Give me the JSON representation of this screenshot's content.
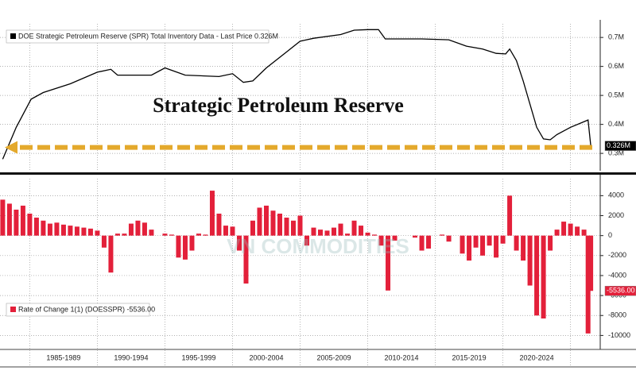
{
  "chart_data": [
    {
      "type": "line",
      "annotation": "Strategic Petroleum Reserve",
      "series": [
        {
          "name": "DOE Strategic Petroleum Reserve (SPR) Total Inventory Data - Last Price 0.326M",
          "color": "#000000",
          "last_label": "0.326M",
          "x": [
            1983.0,
            1984.0,
            1985.1,
            1986.0,
            1988.0,
            1990.0,
            1991.0,
            1991.5,
            1994.0,
            1995.0,
            1996.5,
            1999.0,
            2000.0,
            2000.8,
            2001.5,
            2002.5,
            2004.0,
            2005.0,
            2006.0,
            2008.0,
            2009.0,
            2010.0,
            2010.8,
            2011.3,
            2014.0,
            2016.0,
            2017.3,
            2018.5,
            2019.5,
            2020.2,
            2020.5,
            2021.0,
            2021.5,
            2022.0,
            2022.5,
            2023.0,
            2023.5,
            2024.0,
            2025.0,
            2026.3,
            2026.5
          ],
          "values": [
            0.28,
            0.39,
            0.487,
            0.51,
            0.54,
            0.58,
            0.59,
            0.57,
            0.57,
            0.595,
            0.57,
            0.565,
            0.575,
            0.545,
            0.55,
            0.595,
            0.65,
            0.687,
            0.697,
            0.71,
            0.725,
            0.727,
            0.727,
            0.695,
            0.695,
            0.692,
            0.67,
            0.66,
            0.645,
            0.643,
            0.66,
            0.62,
            0.55,
            0.47,
            0.39,
            0.35,
            0.347,
            0.365,
            0.39,
            0.415,
            0.326
          ]
        }
      ],
      "xlim": [
        1982.8,
        2027.2
      ],
      "ylim": [
        0.24,
        0.747
      ],
      "yticks": [
        {
          "value": 0.3,
          "label": "0.3M"
        },
        {
          "value": 0.4,
          "label": "0.4M"
        },
        {
          "value": 0.5,
          "label": "0.5M"
        },
        {
          "value": 0.6,
          "label": "0.6M"
        },
        {
          "value": 0.7,
          "label": "0.7M"
        }
      ],
      "xgrid": [
        1985,
        1990,
        1995,
        2000,
        2005,
        2010,
        2015,
        2020,
        2025
      ],
      "grid": true
    },
    {
      "type": "bar",
      "watermark": "VN COMMODITIES",
      "series": [
        {
          "name": "Rate of Change 1(1) (DOESSPR) -5536.00",
          "color": "#e3203a",
          "last_label": "-5536.00",
          "x": [
            1983.0,
            1983.5,
            1984.0,
            1984.5,
            1985.0,
            1985.5,
            1986.0,
            1986.5,
            1987.0,
            1987.5,
            1988.0,
            1988.5,
            1989.0,
            1989.5,
            1990.0,
            1990.5,
            1991.0,
            1991.5,
            1992.0,
            1992.5,
            1993.0,
            1993.5,
            1994.0,
            1995.0,
            1995.5,
            1996.0,
            1996.5,
            1997.0,
            1997.5,
            1998.0,
            1998.5,
            1999.0,
            1999.5,
            2000.0,
            2000.5,
            2001.0,
            2001.5,
            2002.0,
            2002.5,
            2003.0,
            2003.5,
            2004.0,
            2004.5,
            2005.0,
            2005.5,
            2006.0,
            2006.5,
            2007.0,
            2007.5,
            2008.0,
            2008.5,
            2009.0,
            2009.5,
            2010.0,
            2010.5,
            2011.0,
            2011.5,
            2012.0,
            2013.5,
            2014.0,
            2014.5,
            2015.5,
            2016.0,
            2017.0,
            2017.5,
            2018.0,
            2018.5,
            2019.0,
            2019.5,
            2020.0,
            2020.5,
            2021.0,
            2021.5,
            2022.0,
            2022.5,
            2023.0,
            2023.5,
            2024.0,
            2024.5,
            2025.0,
            2025.5,
            2026.0,
            2026.3,
            2026.5
          ],
          "values": [
            3600,
            3200,
            2600,
            3000,
            2200,
            1800,
            1500,
            1200,
            1300,
            1100,
            1000,
            900,
            800,
            700,
            500,
            -1200,
            -3700,
            200,
            200,
            1200,
            1500,
            1300,
            600,
            200,
            100,
            -2200,
            -2400,
            -1500,
            200,
            100,
            4500,
            2200,
            1000,
            900,
            -1500,
            -4800,
            1500,
            2800,
            3000,
            2500,
            2200,
            1800,
            1500,
            2000,
            -1000,
            800,
            600,
            500,
            800,
            1200,
            200,
            1500,
            1000,
            300,
            100,
            -1000,
            -5500,
            -500,
            -200,
            -1500,
            -1300,
            100,
            -600,
            -1800,
            -2500,
            -1200,
            -2000,
            -1000,
            -2200,
            -800,
            4000,
            -1500,
            -2500,
            -5000,
            -8000,
            -8300,
            -1500,
            600,
            1400,
            1200,
            900,
            600,
            -9800,
            -5536
          ]
        }
      ],
      "xlim": [
        1982.8,
        2027.2
      ],
      "ylim": [
        -11400,
        5700
      ],
      "yticks": [
        4000,
        2000,
        0,
        -2000,
        -4000,
        -6000,
        -8000,
        -10000
      ],
      "xgrid": [
        1985,
        1990,
        1995,
        2000,
        2005,
        2010,
        2015,
        2020,
        2025
      ],
      "xticks": [
        {
          "value": 1987.5,
          "label": "1985-1989"
        },
        {
          "value": 1992.5,
          "label": "1990-1994"
        },
        {
          "value": 1997.5,
          "label": "1995-1999"
        },
        {
          "value": 2002.5,
          "label": "2000-2004"
        },
        {
          "value": 2007.5,
          "label": "2005-2009"
        },
        {
          "value": 2012.5,
          "label": "2010-2014"
        },
        {
          "value": 2017.5,
          "label": "2015-2019"
        },
        {
          "value": 2022.5,
          "label": "2020-2024"
        }
      ],
      "grid": true
    }
  ]
}
